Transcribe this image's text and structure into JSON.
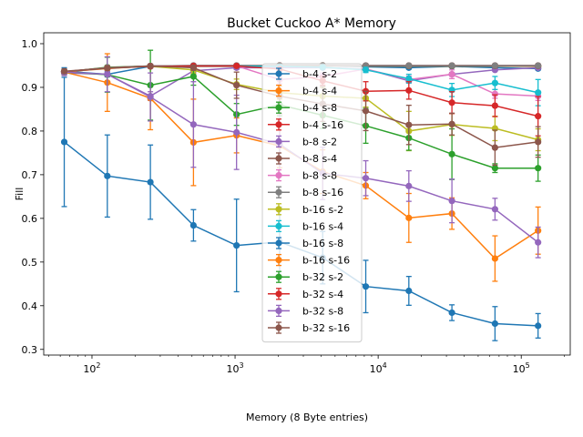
{
  "chart_data": {
    "type": "line",
    "title": "Bucket Cuckoo A* Memory",
    "xlabel": "Memory (8 Byte entries)",
    "ylabel": "Fill",
    "xscale": "log",
    "xlim": [
      46,
      220000
    ],
    "ylim": [
      0.287,
      1.025
    ],
    "x_ticks": [
      {
        "value": 100,
        "base": "10",
        "exp": "2"
      },
      {
        "value": 1000,
        "base": "10",
        "exp": "3"
      },
      {
        "value": 10000,
        "base": "10",
        "exp": "4"
      },
      {
        "value": 100000,
        "base": "10",
        "exp": "5"
      }
    ],
    "y_ticks": [
      "0.3",
      "0.4",
      "0.5",
      "0.6",
      "0.7",
      "0.8",
      "0.9",
      "1.0"
    ],
    "legend_position": "upper-center",
    "colors": [
      "#1f77b4",
      "#ff7f0e",
      "#2ca02c",
      "#d62728",
      "#9467bd",
      "#8c564b",
      "#e377c2",
      "#7f7f7f",
      "#bcbd22",
      "#17becf"
    ],
    "x": [
      64,
      128,
      256,
      512,
      1024,
      2048,
      4096,
      8192,
      16384,
      32768,
      65536,
      131072
    ],
    "series": [
      {
        "name": "b-4 s-2",
        "color": "#1f77b4",
        "values": [
          0.937,
          0.93,
          0.948,
          0.948,
          0.948,
          0.95,
          0.95,
          0.947,
          0.945,
          0.948,
          0.945,
          0.943
        ],
        "err": [
          0.008,
          0.006,
          0.004,
          0.003,
          0.003,
          0.002,
          0.002,
          0.002,
          0.002,
          0.002,
          0.002,
          0.002
        ]
      },
      {
        "name": "b-4 s-4",
        "color": "#ff7f0e",
        "values": [
          0.936,
          0.943,
          0.949,
          0.948,
          0.948,
          0.95,
          0.95,
          0.949,
          0.949,
          0.949,
          0.949,
          0.948
        ],
        "err": [
          0.006,
          0.004,
          0.003,
          0.003,
          0.002,
          0.002,
          0.002,
          0.002,
          0.002,
          0.002,
          0.002,
          0.002
        ]
      },
      {
        "name": "b-4 s-8",
        "color": "#2ca02c",
        "values": [
          0.935,
          0.946,
          0.949,
          0.949,
          0.949,
          0.949,
          0.95,
          0.949,
          0.949,
          0.949,
          0.949,
          0.949
        ],
        "err": [
          0.005,
          0.004,
          0.003,
          0.002,
          0.002,
          0.002,
          0.002,
          0.002,
          0.002,
          0.002,
          0.002,
          0.002
        ]
      },
      {
        "name": "b-4 s-16",
        "color": "#d62728",
        "values": [
          0.936,
          0.945,
          0.949,
          0.95,
          0.95,
          0.95,
          0.95,
          0.95,
          0.95,
          0.95,
          0.95,
          0.95
        ],
        "err": [
          0.005,
          0.004,
          0.003,
          0.002,
          0.002,
          0.002,
          0.002,
          0.002,
          0.002,
          0.002,
          0.002,
          0.002
        ]
      },
      {
        "name": "b-8 s-2",
        "color": "#9467bd",
        "values": [
          0.933,
          0.93,
          0.88,
          0.938,
          0.945,
          0.945,
          0.945,
          0.942,
          0.915,
          0.93,
          0.94,
          0.945
        ],
        "err": [
          0.006,
          0.005,
          0.01,
          0.008,
          0.004,
          0.003,
          0.003,
          0.003,
          0.004,
          0.004,
          0.003,
          0.003
        ]
      },
      {
        "name": "b-8 s-4",
        "color": "#8c564b",
        "values": [
          0.936,
          0.944,
          0.949,
          0.949,
          0.949,
          0.949,
          0.949,
          0.949,
          0.949,
          0.949,
          0.949,
          0.949
        ],
        "err": [
          0.005,
          0.004,
          0.003,
          0.002,
          0.002,
          0.002,
          0.002,
          0.002,
          0.002,
          0.002,
          0.002,
          0.002
        ]
      },
      {
        "name": "b-8 s-8",
        "color": "#e377c2",
        "values": [
          0.935,
          0.944,
          0.949,
          0.949,
          0.949,
          0.918,
          0.925,
          0.942,
          0.918,
          0.93,
          0.885,
          0.88
        ],
        "err": [
          0.005,
          0.004,
          0.003,
          0.002,
          0.002,
          0.01,
          0.008,
          0.004,
          0.008,
          0.01,
          0.01,
          0.01
        ]
      },
      {
        "name": "b-8 s-16",
        "color": "#7f7f7f",
        "values": [
          0.936,
          0.945,
          0.949,
          0.95,
          0.95,
          0.95,
          0.95,
          0.95,
          0.95,
          0.95,
          0.95,
          0.95
        ],
        "err": [
          0.005,
          0.004,
          0.003,
          0.002,
          0.002,
          0.002,
          0.002,
          0.002,
          0.002,
          0.002,
          0.002,
          0.002
        ]
      },
      {
        "name": "b-16 s-2",
        "color": "#bcbd22",
        "values": [
          0.935,
          0.944,
          0.948,
          0.94,
          0.907,
          0.888,
          0.88,
          0.875,
          0.8,
          0.815,
          0.806,
          0.78
        ],
        "err": [
          0.005,
          0.004,
          0.003,
          0.008,
          0.012,
          0.015,
          0.02,
          0.02,
          0.045,
          0.025,
          0.028,
          0.025
        ]
      },
      {
        "name": "b-16 s-4",
        "color": "#17becf",
        "values": [
          0.936,
          0.944,
          0.948,
          0.949,
          0.949,
          0.948,
          0.946,
          0.94,
          0.92,
          0.894,
          0.91,
          0.888
        ],
        "err": [
          0.005,
          0.004,
          0.003,
          0.002,
          0.002,
          0.003,
          0.004,
          0.006,
          0.01,
          0.015,
          0.015,
          0.03
        ]
      },
      {
        "name": "b-16 s-8",
        "color": "#1f77b4",
        "values": [
          0.775,
          0.697,
          0.683,
          0.584,
          0.538,
          0.546,
          0.51,
          0.444,
          0.434,
          0.384,
          0.359,
          0.354
        ],
        "err": [
          0.148,
          0.094,
          0.085,
          0.036,
          0.106,
          0.08,
          0.06,
          0.06,
          0.033,
          0.018,
          0.039,
          0.028
        ]
      },
      {
        "name": "b-16 s-16",
        "color": "#ff7f0e",
        "values": [
          0.935,
          0.911,
          0.875,
          0.774,
          0.79,
          0.766,
          0.707,
          0.675,
          0.601,
          0.611,
          0.508,
          0.572
        ],
        "err": [
          0.006,
          0.066,
          0.072,
          0.099,
          0.04,
          0.05,
          0.05,
          0.03,
          0.056,
          0.036,
          0.052,
          0.054
        ]
      },
      {
        "name": "b-32 s-2",
        "color": "#2ca02c",
        "values": [
          0.935,
          0.929,
          0.905,
          0.925,
          0.838,
          0.86,
          0.836,
          0.812,
          0.784,
          0.747,
          0.715,
          0.715
        ],
        "err": [
          0.006,
          0.04,
          0.08,
          0.02,
          0.025,
          0.025,
          0.03,
          0.04,
          0.028,
          0.058,
          0.01,
          0.03
        ]
      },
      {
        "name": "b-32 s-4",
        "color": "#d62728",
        "values": [
          0.936,
          0.944,
          0.948,
          0.949,
          0.949,
          0.942,
          0.915,
          0.891,
          0.893,
          0.865,
          0.858,
          0.834
        ],
        "err": [
          0.005,
          0.004,
          0.003,
          0.002,
          0.002,
          0.004,
          0.01,
          0.022,
          0.02,
          0.025,
          0.025,
          0.045
        ]
      },
      {
        "name": "b-32 s-8",
        "color": "#9467bd",
        "values": [
          0.935,
          0.93,
          0.878,
          0.815,
          0.797,
          0.77,
          0.703,
          0.692,
          0.674,
          0.64,
          0.621,
          0.545
        ],
        "err": [
          0.006,
          0.04,
          0.055,
          0.098,
          0.085,
          0.07,
          0.06,
          0.04,
          0.035,
          0.05,
          0.025,
          0.035
        ]
      },
      {
        "name": "b-32 s-16",
        "color": "#8c564b",
        "values": [
          0.937,
          0.944,
          0.949,
          0.945,
          0.905,
          0.88,
          0.862,
          0.846,
          0.814,
          0.816,
          0.762,
          0.775
        ],
        "err": [
          0.005,
          0.004,
          0.003,
          0.006,
          0.03,
          0.04,
          0.04,
          0.045,
          0.045,
          0.025,
          0.04,
          0.035
        ]
      }
    ]
  }
}
